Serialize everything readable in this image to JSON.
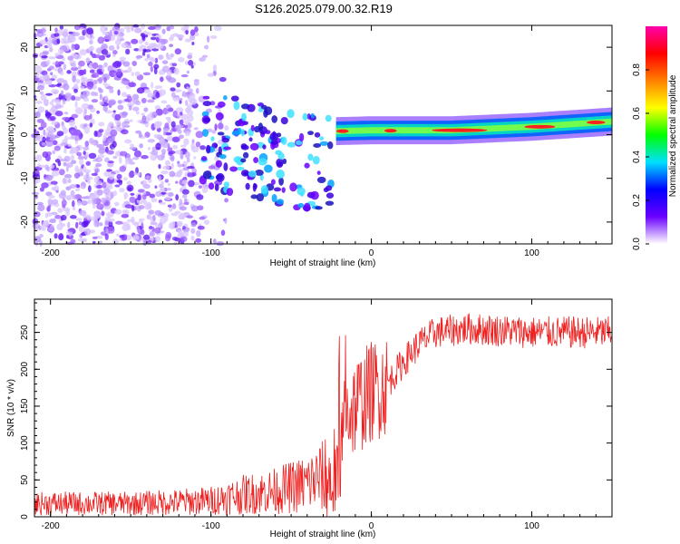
{
  "figure": {
    "title": "S126.2025.079.00.32.R19"
  },
  "chart_data": [
    {
      "type": "heatmap",
      "title": "S126.2025.079.00.32.R19",
      "xlabel": "Height of straight line (km)",
      "ylabel": "Frequency (Hz)",
      "xlim": [
        -210,
        150
      ],
      "ylim": [
        -25,
        25
      ],
      "xticks": [
        -200,
        -100,
        0,
        100
      ],
      "xtick_labels": [
        "-200",
        "-100",
        "0",
        "100"
      ],
      "yticks": [
        -20,
        -10,
        0,
        10,
        20
      ],
      "ytick_labels": [
        "-20",
        "-10",
        "0",
        "10",
        "20"
      ],
      "colorbar": {
        "label": "Normalized spectral amplitude",
        "range": [
          0,
          1
        ],
        "ticks": [
          0.0,
          0.2,
          0.4,
          0.6,
          0.8
        ],
        "tick_labels": [
          "0.0",
          "0.2",
          "0.4",
          "0.6",
          "0.8"
        ],
        "colors": [
          "#ffffff",
          "#6a00ff",
          "#0000ff",
          "#00e0ff",
          "#00ff00",
          "#ffff00",
          "#ff8000",
          "#ff0000",
          "#ff00aa"
        ]
      },
      "features": {
        "noise_region_x": [
          -210,
          -110
        ],
        "carrier_track": [
          [
            -22,
            0.8
          ],
          [
            0,
            1.0
          ],
          [
            50,
            1.0
          ],
          [
            100,
            1.8
          ],
          [
            150,
            3.0
          ]
        ],
        "carrier_peak_amplitude": 0.9
      }
    },
    {
      "type": "line",
      "xlabel": "Height of straight line (km)",
      "ylabel": "SNR (10 * v/v)",
      "xlim": [
        -210,
        150
      ],
      "ylim": [
        0,
        295
      ],
      "xticks": [
        -200,
        -100,
        0,
        100
      ],
      "xtick_labels": [
        "-200",
        "-100",
        "0",
        "100"
      ],
      "yticks": [
        0,
        50,
        100,
        150,
        200,
        250
      ],
      "ytick_labels": [
        "0",
        "50",
        "100",
        "150",
        "200",
        "250"
      ],
      "series": [
        {
          "name": "SNR",
          "color": "#ee2020",
          "x": [
            -210,
            -150,
            -120,
            -100,
            -80,
            -60,
            -40,
            -30,
            -25,
            -20,
            -15,
            -10,
            0,
            10,
            20,
            30,
            40,
            60,
            100,
            150
          ],
          "y": [
            18,
            18,
            20,
            22,
            30,
            35,
            45,
            55,
            45,
            80,
            140,
            150,
            170,
            180,
            210,
            235,
            250,
            255,
            250,
            250
          ]
        }
      ]
    }
  ]
}
